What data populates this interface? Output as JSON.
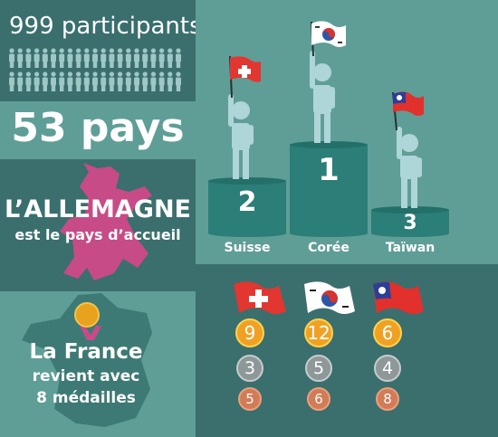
{
  "participants": {
    "count_text": "999 participants"
  },
  "countries": {
    "count_text": "53 pays"
  },
  "host": {
    "title": "L’ALLEMAGNE",
    "subtitle": "est le pays d’accueil"
  },
  "france": {
    "line1": "La France",
    "line2": "revient avec",
    "line3": "8 médailles"
  },
  "podium": {
    "places": [
      {
        "rank": "1",
        "country": "Corée"
      },
      {
        "rank": "2",
        "country": "Suisse"
      },
      {
        "rank": "3",
        "country": "Taïwan"
      }
    ]
  },
  "medals": {
    "columns": [
      {
        "country": "Suisse",
        "gold": "9",
        "silver": "3",
        "bronze": "5"
      },
      {
        "country": "Corée",
        "gold": "12",
        "silver": "5",
        "bronze": "6"
      },
      {
        "country": "Taïwan",
        "gold": "6",
        "silver": "4",
        "bronze": "8"
      }
    ]
  },
  "colors": {
    "dark_panel": "#3a6f6e",
    "teal_panel": "#5f9e97",
    "podium": "#2c7e78",
    "bear": "#c74b86",
    "gold": "#f0a124",
    "silver": "#8e9898",
    "bronze": "#d27b57"
  }
}
